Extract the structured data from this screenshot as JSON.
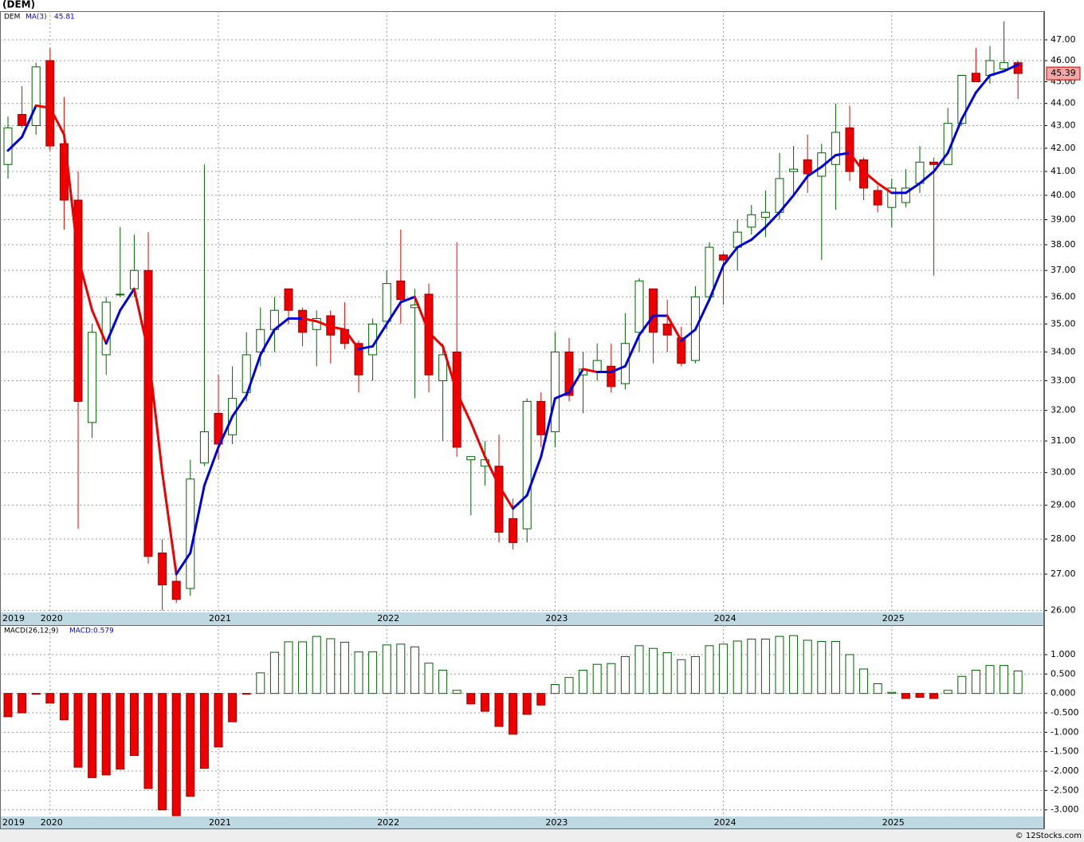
{
  "chart_data": [
    {
      "type": "candlestick",
      "title": "(DEM)",
      "symbol": "DEM",
      "log_scale": true,
      "grid": true,
      "categories": [
        "2019",
        null,
        null,
        "2020",
        null,
        null,
        null,
        null,
        null,
        null,
        null,
        null,
        null,
        null,
        null,
        "2021",
        null,
        null,
        null,
        null,
        null,
        null,
        null,
        null,
        null,
        null,
        null,
        "2022",
        null,
        null,
        null,
        null,
        null,
        null,
        null,
        null,
        null,
        null,
        null,
        "2023",
        null,
        null,
        null,
        null,
        null,
        null,
        null,
        null,
        null,
        null,
        null,
        "2024",
        null,
        null,
        null,
        null,
        null,
        null,
        null,
        null,
        null,
        null,
        null,
        "2025",
        null,
        null,
        null,
        null,
        null,
        null,
        null,
        null,
        null
      ],
      "open": [
        41.3,
        43.5,
        43.0,
        46.0,
        42.2,
        39.8,
        31.6,
        33.9,
        36.1,
        36.3,
        37.0,
        27.6,
        26.8,
        26.6,
        30.3,
        31.9,
        31.2,
        32.6,
        34.0,
        34.8,
        36.3,
        35.5,
        34.8,
        35.3,
        34.8,
        34.3,
        33.9,
        35.1,
        36.6,
        35.6,
        36.1,
        33.0,
        34.0,
        30.4,
        30.2,
        30.2,
        28.6,
        28.3,
        32.3,
        31.3,
        34.0,
        33.2,
        33.3,
        33.5,
        32.9,
        34.7,
        36.3,
        35.0,
        34.5,
        33.7,
        36.0,
        37.6,
        37.9,
        38.7,
        39.1,
        39.3,
        41.0,
        41.5,
        40.8,
        41.3,
        42.9,
        41.5,
        40.2,
        39.5,
        39.7,
        40.5,
        41.4,
        41.3,
        43.1,
        45.4,
        45.3,
        45.6,
        45.9
      ],
      "high": [
        43.4,
        44.8,
        45.9,
        46.6,
        44.3,
        41.0,
        35.0,
        36.0,
        38.7,
        38.4,
        38.5,
        28.0,
        27.2,
        30.4,
        41.3,
        33.2,
        33.5,
        34.7,
        35.6,
        36.0,
        36.3,
        35.6,
        35.5,
        35.5,
        35.8,
        34.4,
        35.2,
        37.0,
        38.6,
        36.3,
        36.5,
        34.3,
        38.1,
        30.5,
        31.0,
        31.2,
        29.2,
        32.4,
        32.6,
        34.7,
        34.5,
        34.0,
        34.3,
        34.3,
        35.4,
        36.7,
        36.3,
        35.9,
        34.9,
        36.4,
        38.1,
        37.7,
        39.0,
        39.6,
        40.2,
        41.8,
        42.1,
        42.6,
        42.2,
        44.0,
        43.9,
        41.6,
        40.4,
        40.7,
        41.1,
        42.1,
        41.6,
        43.8,
        45.3,
        46.6,
        46.7,
        47.9,
        46.0
      ],
      "low": [
        40.7,
        42.9,
        42.6,
        41.9,
        38.6,
        28.3,
        31.1,
        33.2,
        36.0,
        36.0,
        27.3,
        26.0,
        26.2,
        26.4,
        30.2,
        30.4,
        30.9,
        32.3,
        33.5,
        34.0,
        35.0,
        34.2,
        33.5,
        33.6,
        34.1,
        32.6,
        33.0,
        34.8,
        35.0,
        32.4,
        32.6,
        31.0,
        30.5,
        28.7,
        29.6,
        27.9,
        27.7,
        27.9,
        30.8,
        30.8,
        32.3,
        31.9,
        33.0,
        32.6,
        32.7,
        34.0,
        33.6,
        34.0,
        33.5,
        33.6,
        35.8,
        35.7,
        37.0,
        38.4,
        38.3,
        39.0,
        40.0,
        40.1,
        37.4,
        39.4,
        40.6,
        39.8,
        39.3,
        38.7,
        39.5,
        40.1,
        36.8,
        41.3,
        43.0,
        45.0,
        44.9,
        45.6,
        44.2
      ],
      "close": [
        42.9,
        43.0,
        45.7,
        42.1,
        39.8,
        32.3,
        34.7,
        35.8,
        36.1,
        37.0,
        27.5,
        26.7,
        26.3,
        29.8,
        31.3,
        30.9,
        32.4,
        33.9,
        34.8,
        35.5,
        35.5,
        34.7,
        35.2,
        34.6,
        34.3,
        33.2,
        35.0,
        36.5,
        35.9,
        35.7,
        33.2,
        33.9,
        30.8,
        30.5,
        30.4,
        28.2,
        27.9,
        32.3,
        31.2,
        34.0,
        32.5,
        33.4,
        33.7,
        32.8,
        34.3,
        36.6,
        34.7,
        34.6,
        33.6,
        36.0,
        37.9,
        37.4,
        38.5,
        39.2,
        39.3,
        40.7,
        41.1,
        40.9,
        41.8,
        42.7,
        41.0,
        40.3,
        39.6,
        40.3,
        40.3,
        41.4,
        41.3,
        43.1,
        45.3,
        45.0,
        46.0,
        45.9,
        45.39
      ],
      "close_label": "45.39",
      "ma": {
        "name": "MA(3)",
        "label": "45.81",
        "up_color": "#0000dd",
        "down_color": "#ee0000",
        "values": [
          41.9,
          42.5,
          43.9,
          43.8,
          42.6,
          37.5,
          35.5,
          34.3,
          35.5,
          36.3,
          34.0,
          30.0,
          27.0,
          27.6,
          29.6,
          30.8,
          31.8,
          32.5,
          33.9,
          34.8,
          35.2,
          35.2,
          35.1,
          34.9,
          34.8,
          34.1,
          34.2,
          35.0,
          35.8,
          36.0,
          34.7,
          34.2,
          32.6,
          31.6,
          30.5,
          29.6,
          28.9,
          29.3,
          30.5,
          32.4,
          32.6,
          33.4,
          33.3,
          33.3,
          33.5,
          34.6,
          35.3,
          35.3,
          34.4,
          34.8,
          35.9,
          37.2,
          37.9,
          38.2,
          38.7,
          39.3,
          40.0,
          40.8,
          41.2,
          41.7,
          41.8,
          41.0,
          40.5,
          40.1,
          40.1,
          40.5,
          41.0,
          41.8,
          43.3,
          44.5,
          45.3,
          45.5,
          45.81
        ]
      },
      "up_color": "#006400",
      "down_color": "#ee0000",
      "ylim": [
        25.95,
        48.42
      ],
      "yticks": [
        {
          "value": 26,
          "label": "26.00"
        },
        {
          "value": 27,
          "label": "27.00"
        },
        {
          "value": 28,
          "label": "28.00"
        },
        {
          "value": 29,
          "label": "29.00"
        },
        {
          "value": 30,
          "label": "30.00"
        },
        {
          "value": 31,
          "label": "31.00"
        },
        {
          "value": 32,
          "label": "32.00"
        },
        {
          "value": 33,
          "label": "33.00"
        },
        {
          "value": 34,
          "label": "34.00"
        },
        {
          "value": 35,
          "label": "35.00"
        },
        {
          "value": 36,
          "label": "36.00"
        },
        {
          "value": 37,
          "label": "37.00"
        },
        {
          "value": 38,
          "label": "38.00"
        },
        {
          "value": 39,
          "label": "39.00"
        },
        {
          "value": 40,
          "label": "40.00"
        },
        {
          "value": 41,
          "label": "41.00"
        },
        {
          "value": 42,
          "label": "42.00"
        },
        {
          "value": 43,
          "label": "43.00"
        },
        {
          "value": 44,
          "label": "44.00"
        },
        {
          "value": 45,
          "label": "45.00"
        },
        {
          "value": 46,
          "label": "46.00"
        },
        {
          "value": 47,
          "label": "47.00"
        }
      ]
    },
    {
      "type": "bar",
      "title": "MACD(26,12,9)",
      "value_label": "MACD:0.579",
      "grid": true,
      "categories": [
        "2019",
        null,
        null,
        "2020",
        null,
        null,
        null,
        null,
        null,
        null,
        null,
        null,
        null,
        null,
        null,
        "2021",
        null,
        null,
        null,
        null,
        null,
        null,
        null,
        null,
        null,
        null,
        null,
        "2022",
        null,
        null,
        null,
        null,
        null,
        null,
        null,
        null,
        null,
        null,
        null,
        "2023",
        null,
        null,
        null,
        null,
        null,
        null,
        null,
        null,
        null,
        null,
        null,
        "2024",
        null,
        null,
        null,
        null,
        null,
        null,
        null,
        null,
        null,
        null,
        null,
        "2025",
        null,
        null,
        null,
        null,
        null,
        null,
        null,
        null,
        null
      ],
      "values": [
        -0.6,
        -0.5,
        -0.02,
        -0.25,
        -0.68,
        -1.9,
        -2.17,
        -2.1,
        -1.95,
        -1.6,
        -2.45,
        -3.0,
        -3.15,
        -2.65,
        -1.93,
        -1.38,
        -0.73,
        -0.02,
        0.53,
        1.06,
        1.33,
        1.33,
        1.47,
        1.41,
        1.32,
        1.07,
        1.07,
        1.25,
        1.27,
        1.2,
        0.78,
        0.6,
        0.08,
        -0.27,
        -0.46,
        -0.85,
        -1.05,
        -0.54,
        -0.3,
        0.23,
        0.41,
        0.6,
        0.75,
        0.77,
        0.95,
        1.23,
        1.16,
        1.05,
        0.87,
        0.95,
        1.23,
        1.27,
        1.35,
        1.4,
        1.4,
        1.47,
        1.49,
        1.37,
        1.34,
        1.34,
        1.0,
        0.63,
        0.25,
        0.03,
        -0.13,
        -0.1,
        -0.13,
        0.08,
        0.44,
        0.6,
        0.72,
        0.72,
        0.579
      ],
      "up_color": "#006400",
      "down_color": "#ee0000",
      "ylim": [
        -3.17,
        1.76
      ],
      "yticks": [
        {
          "value": -3,
          "label": "-3.000"
        },
        {
          "value": -2.5,
          "label": "-2.500"
        },
        {
          "value": -2,
          "label": "-2.000"
        },
        {
          "value": -1.5,
          "label": "-1.500"
        },
        {
          "value": -1,
          "label": "-1.000"
        },
        {
          "value": -0.5,
          "label": "-0.500"
        },
        {
          "value": 0,
          "label": "0.000"
        },
        {
          "value": 0.5,
          "label": "0.500"
        },
        {
          "value": 1,
          "label": "1.000"
        }
      ]
    }
  ],
  "footer": "© 12Stocks.com"
}
